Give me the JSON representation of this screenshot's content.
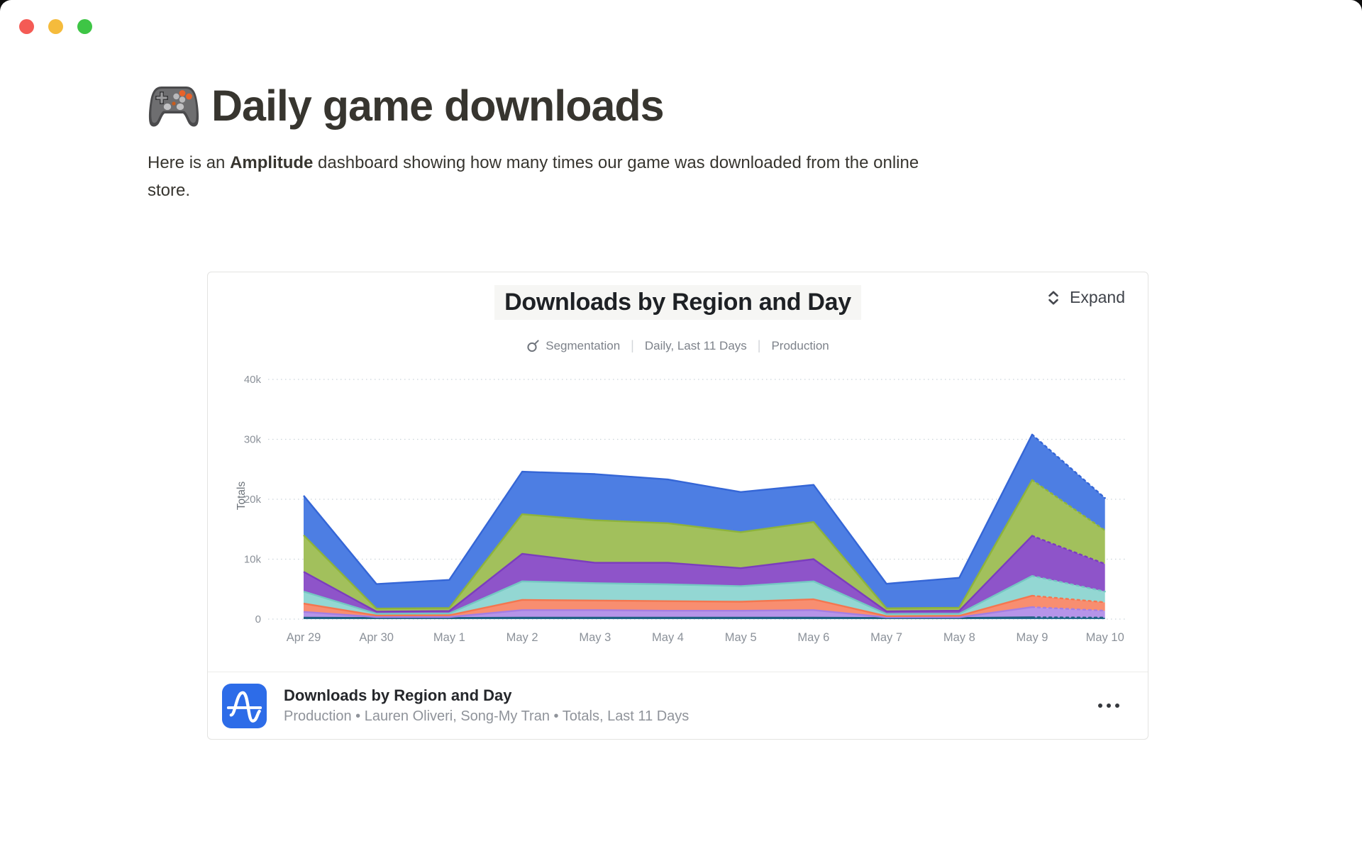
{
  "window_controls": [
    "close",
    "minimize",
    "zoom"
  ],
  "page": {
    "emoji": "🎮",
    "title": "Daily game downloads",
    "intro_prefix": "Here is an ",
    "intro_bold": "Amplitude",
    "intro_suffix": " dashboard showing how many times our game was downloaded from the online store."
  },
  "embed": {
    "expand_label": "Expand",
    "header_title": "Downloads by Region and Day",
    "meta": {
      "mode": "Segmentation",
      "range": "Daily, Last 11 Days",
      "env": "Production"
    },
    "footer": {
      "title": "Downloads by Region and Day",
      "subtitle": "Production • Lauren Oliveri, Song-My Tran • Totals, Last 11 Days"
    }
  },
  "chart_data": {
    "type": "area",
    "stacked": true,
    "title": "Downloads by Region and Day",
    "ylabel": "Totals",
    "xlabel": "",
    "x": [
      "Apr 29",
      "Apr 30",
      "May 1",
      "May 2",
      "May 3",
      "May 4",
      "May 5",
      "May 6",
      "May 7",
      "May 8",
      "May 9",
      "May 10"
    ],
    "yticks": [
      "0",
      "10k",
      "20k",
      "30k",
      "40k"
    ],
    "ytick_values": [
      0,
      10000,
      20000,
      30000,
      40000
    ],
    "ylim": [
      0,
      40000
    ],
    "grid": "dotted-horizontal",
    "legend": "none",
    "incomplete_last_segment": true,
    "series": [
      {
        "name": "steel-blue",
        "fill": "#2d7296",
        "edge": "#1f5f80",
        "values": [
          250,
          200,
          200,
          250,
          250,
          250,
          250,
          250,
          200,
          200,
          300,
          250
        ]
      },
      {
        "name": "lavender",
        "fill": "#b694e9",
        "edge": "#a57ee2",
        "values": [
          950,
          150,
          150,
          1250,
          1250,
          1150,
          1150,
          1250,
          100,
          100,
          1700,
          1150
        ]
      },
      {
        "name": "coral",
        "fill": "#f88e70",
        "edge": "#f4764f",
        "values": [
          1400,
          250,
          300,
          1700,
          1600,
          1600,
          1500,
          1800,
          200,
          250,
          1900,
          1400
        ]
      },
      {
        "name": "teal",
        "fill": "#93d7d3",
        "edge": "#74c7c2",
        "values": [
          2000,
          300,
          300,
          3100,
          2900,
          2800,
          2600,
          3000,
          350,
          350,
          3300,
          1800
        ]
      },
      {
        "name": "purple",
        "fill": "#8e54c9",
        "edge": "#7b3dbd",
        "values": [
          3300,
          350,
          400,
          4600,
          3400,
          3600,
          3000,
          3700,
          450,
          500,
          6700,
          4600
        ]
      },
      {
        "name": "green",
        "fill": "#a2c05c",
        "edge": "#8db33c",
        "values": [
          6100,
          500,
          500,
          6600,
          7100,
          6600,
          6000,
          6200,
          500,
          500,
          9300,
          5600
        ]
      },
      {
        "name": "blue",
        "fill": "#4d7ee3",
        "edge": "#3566d6",
        "values": [
          6600,
          4100,
          4700,
          7100,
          7700,
          7300,
          6700,
          6200,
          4100,
          5000,
          7600,
          5400
        ]
      }
    ],
    "totals_by_day": [
      20600,
      5850,
      6550,
      24600,
      24200,
      23300,
      21200,
      22400,
      5900,
      6900,
      30800,
      20200
    ]
  }
}
